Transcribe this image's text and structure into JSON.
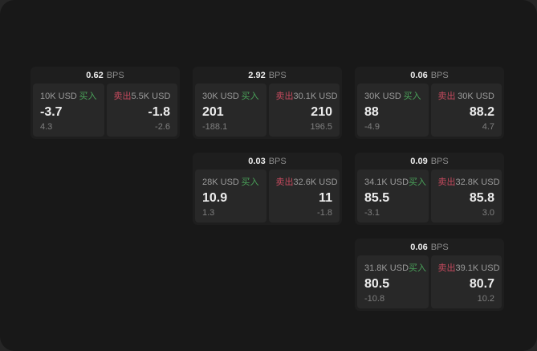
{
  "colors": {
    "backdrop": "#262626",
    "page_bg": "#181818",
    "card_bg": "#1e1e1e",
    "panel_bg": "#282828",
    "buy": "#4aa35a",
    "sell": "#c64a5e",
    "value_text": "#ededed",
    "label_text": "#9b9b9b",
    "muted_text": "#8c8c8c",
    "delta_text": "#7f7f7f"
  },
  "labels": {
    "bps": "BPS",
    "buy": "买入",
    "sell": "卖出"
  },
  "cards": [
    {
      "row": 1,
      "col": 1,
      "bps": "0.62",
      "buy": {
        "size": "10K USD",
        "value": "-3.7",
        "delta": "4.3"
      },
      "sell": {
        "size": "5.5K USD",
        "value": "-1.8",
        "delta": "-2.6"
      }
    },
    {
      "row": 1,
      "col": 2,
      "bps": "2.92",
      "buy": {
        "size": "30K USD",
        "value": "201",
        "delta": "-188.1"
      },
      "sell": {
        "size": "30.1K USD",
        "value": "210",
        "delta": "196.5"
      }
    },
    {
      "row": 1,
      "col": 3,
      "bps": "0.06",
      "buy": {
        "size": "30K USD",
        "value": "88",
        "delta": "-4.9"
      },
      "sell": {
        "size": "30K USD",
        "value": "88.2",
        "delta": "4.7"
      }
    },
    {
      "row": 2,
      "col": 2,
      "bps": "0.03",
      "buy": {
        "size": "28K USD",
        "value": "10.9",
        "delta": "1.3"
      },
      "sell": {
        "size": "32.6K USD",
        "value": "11",
        "delta": "-1.8"
      }
    },
    {
      "row": 2,
      "col": 3,
      "bps": "0.09",
      "buy": {
        "size": "34.1K USD",
        "value": "85.5",
        "delta": "-3.1"
      },
      "sell": {
        "size": "32.8K USD",
        "value": "85.8",
        "delta": "3.0"
      }
    },
    {
      "row": 3,
      "col": 3,
      "bps": "0.06",
      "buy": {
        "size": "31.8K USD",
        "value": "80.5",
        "delta": "-10.8"
      },
      "sell": {
        "size": "39.1K USD",
        "value": "80.7",
        "delta": "10.2"
      }
    }
  ]
}
